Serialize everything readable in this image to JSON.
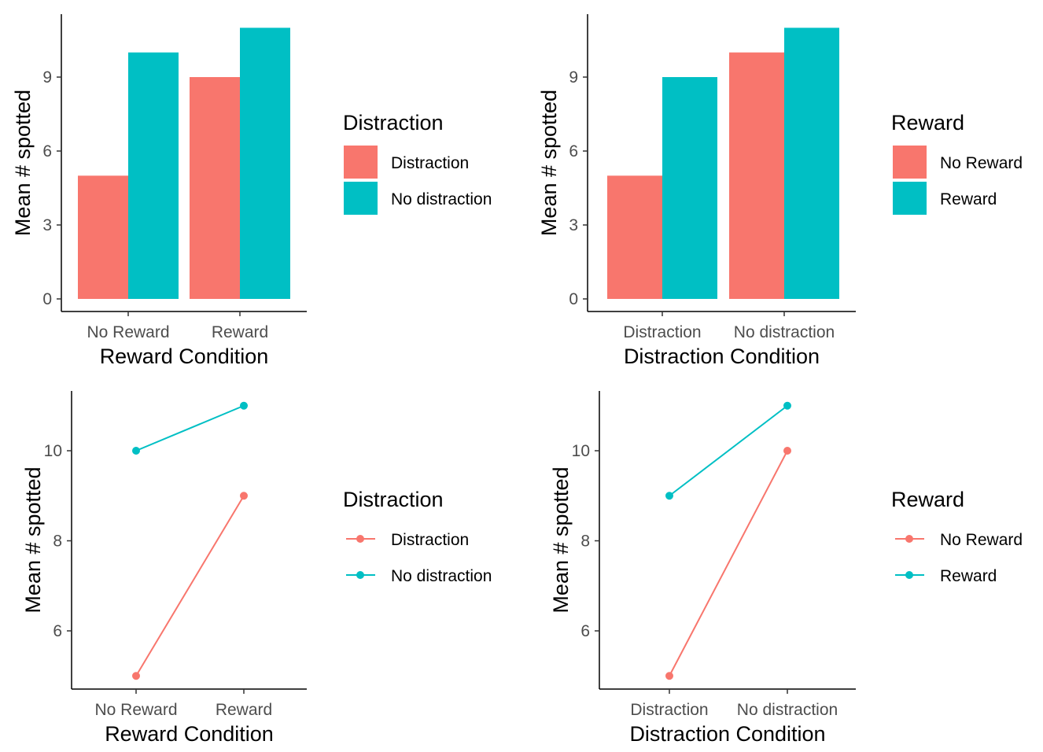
{
  "colors": {
    "series_a": "#F8766D",
    "series_b": "#00BFC4",
    "axis": "#000000",
    "tick_text": "#4d4d4d"
  },
  "chart_data": [
    {
      "type": "bar",
      "xlabel": "Reward Condition",
      "ylabel": "Mean # spotted",
      "categories": [
        "No Reward",
        "Reward"
      ],
      "ylim": [
        0,
        11
      ],
      "yticks": [
        0,
        3,
        6,
        9
      ],
      "legend_title": "Distraction",
      "legend_position": "right",
      "series": [
        {
          "name": "Distraction",
          "values": [
            5,
            9
          ],
          "color": "#F8766D"
        },
        {
          "name": "No distraction",
          "values": [
            10,
            11
          ],
          "color": "#00BFC4"
        }
      ]
    },
    {
      "type": "bar",
      "xlabel": "Distraction Condition",
      "ylabel": "Mean # spotted",
      "categories": [
        "Distraction",
        "No distraction"
      ],
      "ylim": [
        0,
        11
      ],
      "yticks": [
        0,
        3,
        6,
        9
      ],
      "legend_title": "Reward",
      "legend_position": "right",
      "series": [
        {
          "name": "No Reward",
          "values": [
            5,
            10
          ],
          "color": "#F8766D"
        },
        {
          "name": "Reward",
          "values": [
            9,
            11
          ],
          "color": "#00BFC4"
        }
      ]
    },
    {
      "type": "line",
      "xlabel": "Reward Condition",
      "ylabel": "Mean # spotted",
      "categories": [
        "No Reward",
        "Reward"
      ],
      "ylim": [
        5,
        11
      ],
      "yticks": [
        6,
        8,
        10
      ],
      "legend_title": "Distraction",
      "legend_position": "right",
      "series": [
        {
          "name": "Distraction",
          "values": [
            5,
            9
          ],
          "color": "#F8766D"
        },
        {
          "name": "No distraction",
          "values": [
            10,
            11
          ],
          "color": "#00BFC4"
        }
      ]
    },
    {
      "type": "line",
      "xlabel": "Distraction Condition",
      "ylabel": "Mean # spotted",
      "categories": [
        "Distraction",
        "No distraction"
      ],
      "ylim": [
        5,
        11
      ],
      "yticks": [
        6,
        8,
        10
      ],
      "legend_title": "Reward",
      "legend_position": "right",
      "series": [
        {
          "name": "No Reward",
          "values": [
            5,
            10
          ],
          "color": "#F8766D"
        },
        {
          "name": "Reward",
          "values": [
            9,
            11
          ],
          "color": "#00BFC4"
        }
      ]
    }
  ]
}
